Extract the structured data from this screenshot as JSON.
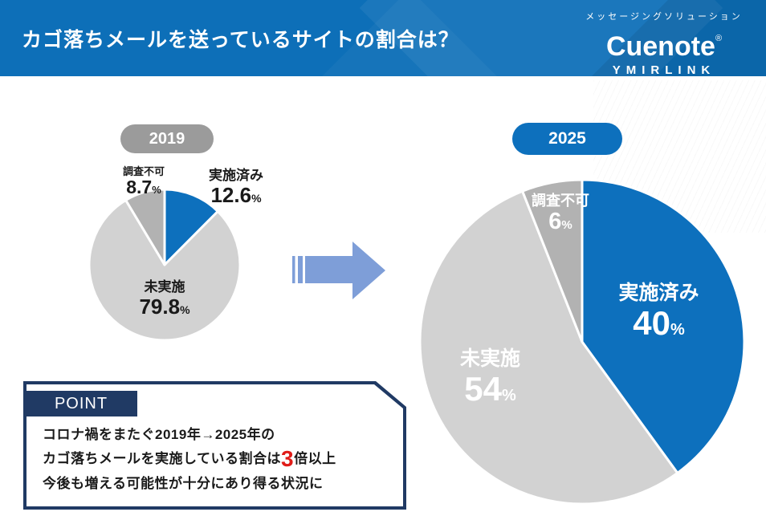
{
  "header": {
    "title": "カゴ落ちメールを送っているサイトの割合は？",
    "brand": {
      "tagline": "メッセージングソリューション",
      "logo": "Cuenote",
      "registered_mark": "®",
      "subbrand": "YMIRLINK"
    }
  },
  "colors": {
    "header_bg": "#0d6fb8",
    "pie_blue": "#0d70bd",
    "pie_light_gray": "#d2d2d2",
    "pie_mid_gray": "#b2b2b2",
    "badge_gray": "#9b9b9b",
    "navy": "#203a64",
    "arrow_blue": "#7e9ed8",
    "highlight_red": "#e01c18"
  },
  "chart_data": [
    {
      "type": "pie",
      "title": "2019",
      "labels": [
        "実施済み",
        "未実施",
        "調査不可"
      ],
      "values": [
        12.6,
        79.8,
        8.7
      ],
      "unit": "%",
      "colors": [
        "#0d70bd",
        "#d2d2d2",
        "#b2b2b2"
      ],
      "start_angle_deg": 0,
      "direction": "clockwise",
      "legend_position": "none"
    },
    {
      "type": "pie",
      "title": "2025",
      "labels": [
        "実施済み",
        "未実施",
        "調査不可"
      ],
      "values": [
        40,
        54,
        6
      ],
      "unit": "%",
      "colors": [
        "#0d70bd",
        "#d2d2d2",
        "#b2b2b2"
      ],
      "start_angle_deg": 0,
      "direction": "clockwise",
      "legend_position": "none"
    }
  ],
  "point": {
    "tab": "POINT",
    "line1": "コロナ禍をまたぐ2019年→2025年の",
    "line2_before": "カゴ落ちメールを実施している割合は",
    "line2_highlight": "3",
    "line2_after": "倍以上",
    "line3": "今後も増える可能性が十分にあり得る状況に"
  }
}
